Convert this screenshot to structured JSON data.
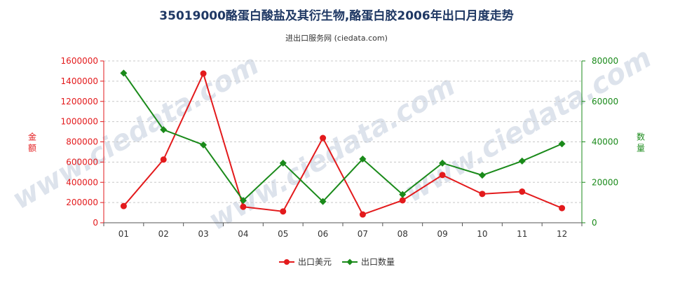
{
  "chart_data": {
    "type": "line",
    "title": "35019000酪蛋白酸盐及其衍生物,酪蛋白胶2006年出口月度走势",
    "subtitle": "进出口服务网 (ciedata.com)",
    "watermark": "www.ciedata.com",
    "categories": [
      "01",
      "02",
      "03",
      "04",
      "05",
      "06",
      "07",
      "08",
      "09",
      "10",
      "11",
      "12"
    ],
    "y_left": {
      "label": "金额",
      "min": 0,
      "max": 1600000,
      "ticks": [
        0,
        200000,
        400000,
        600000,
        800000,
        1000000,
        1200000,
        1400000,
        1600000
      ],
      "color": "#e31a1c"
    },
    "y_right": {
      "label": "数量",
      "min": 0,
      "max": 80000,
      "ticks": [
        0,
        20000,
        40000,
        60000,
        80000
      ],
      "color": "#1a8a1a"
    },
    "series": [
      {
        "name": "出口美元",
        "axis": "left",
        "color": "#e31a1c",
        "marker": "circle",
        "values": [
          165000,
          625000,
          1475000,
          158000,
          112000,
          838000,
          82000,
          222000,
          472000,
          285000,
          308000,
          145000
        ]
      },
      {
        "name": "出口数量",
        "axis": "right",
        "color": "#1a8a1a",
        "marker": "diamond",
        "values": [
          74000,
          46000,
          38500,
          11000,
          29500,
          10500,
          31500,
          14000,
          29500,
          23500,
          30500,
          39000
        ]
      }
    ],
    "grid": true,
    "legend": "bottom"
  }
}
